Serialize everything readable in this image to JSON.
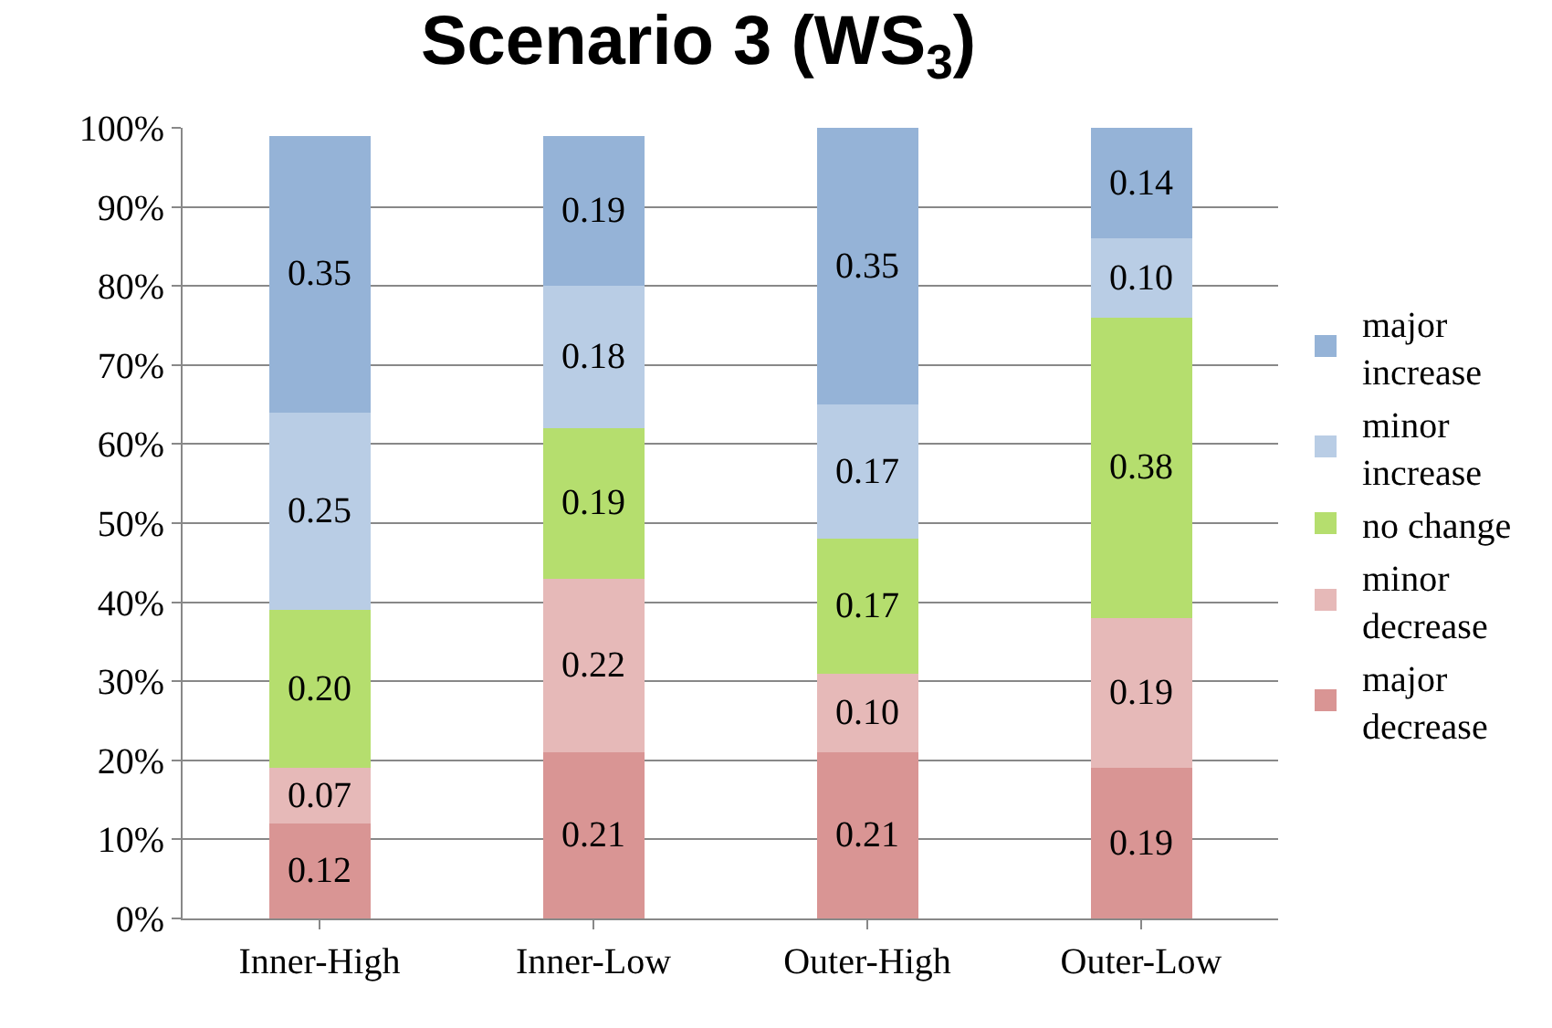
{
  "chart_data": {
    "type": "bar",
    "stacked": true,
    "title": "Scenario 3 (WS$_{3}$)",
    "categories": [
      "Inner-High",
      "Inner-Low",
      "Outer-High",
      "Outer-Low"
    ],
    "series": [
      {
        "name": "major decrease",
        "color": "#d99594",
        "values": [
          0.12,
          0.21,
          0.21,
          0.19
        ],
        "value_labels": [
          "0.12",
          "0.21",
          "0.21",
          "0.19"
        ]
      },
      {
        "name": "minor decrease",
        "color": "#e6b9b8",
        "values": [
          0.07,
          0.22,
          0.1,
          0.19
        ],
        "value_labels": [
          "0.07",
          "0.22",
          "0.10",
          "0.19"
        ]
      },
      {
        "name": "no change",
        "color": "#b5de6e",
        "values": [
          0.2,
          0.19,
          0.17,
          0.38
        ],
        "value_labels": [
          "0.20",
          "0.19",
          "0.17",
          "0.38"
        ]
      },
      {
        "name": "minor increase",
        "color": "#b9cde5",
        "values": [
          0.25,
          0.18,
          0.17,
          0.1
        ],
        "value_labels": [
          "0.25",
          "0.18",
          "0.17",
          "0.10"
        ]
      },
      {
        "name": "major increase",
        "color": "#95b3d7",
        "values": [
          0.35,
          0.19,
          0.35,
          0.14
        ],
        "value_labels": [
          "0.35",
          "0.19",
          "0.35",
          "0.14"
        ]
      }
    ],
    "ylim": [
      0,
      1
    ],
    "yticks": [
      {
        "value": 0,
        "label": "0%"
      },
      {
        "value": 0.1,
        "label": "10%"
      },
      {
        "value": 0.2,
        "label": "20%"
      },
      {
        "value": 0.3,
        "label": "30%"
      },
      {
        "value": 0.4,
        "label": "40%"
      },
      {
        "value": 0.5,
        "label": "50%"
      },
      {
        "value": 0.6,
        "label": "60%"
      },
      {
        "value": 0.7,
        "label": "70%"
      },
      {
        "value": 0.8,
        "label": "80%"
      },
      {
        "value": 0.9,
        "label": "90%"
      },
      {
        "value": 1,
        "label": "100%"
      }
    ],
    "grid": "y",
    "legend": "right"
  }
}
